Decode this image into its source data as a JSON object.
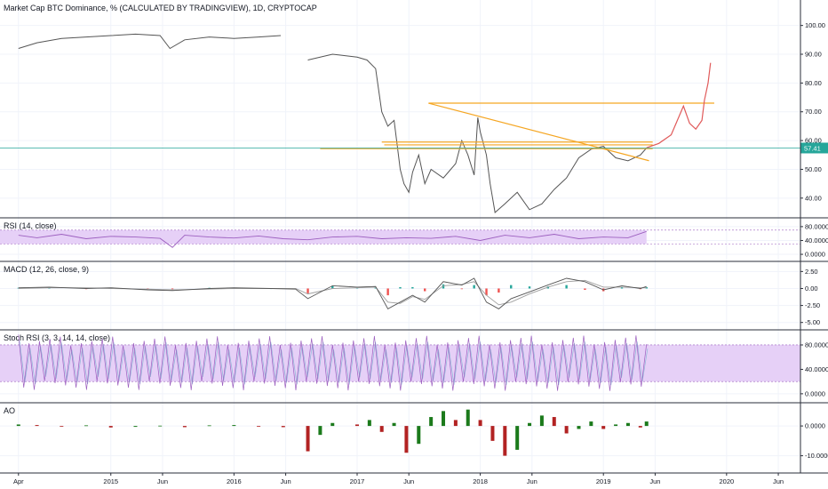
{
  "chart_data": [
    {
      "type": "line",
      "pane": "main",
      "title": "Market Cap BTC Dominance, % (CALCULATED BY TRADINGVIEW), 1D, CRYPTOCAP",
      "ylim": [
        35,
        107
      ],
      "yticks": [
        "100.00",
        "90.00",
        "80.00",
        "70.00",
        "60.00",
        "50.00",
        "40.00"
      ],
      "ytick_values": [
        100,
        90,
        80,
        70,
        60,
        50,
        40
      ],
      "last_value": 57.41,
      "last_value_label": "57.41",
      "series_color": "#555555",
      "x": [
        2014.25,
        2014.4,
        2014.6,
        2014.8,
        2015.0,
        2015.2,
        2015.4,
        2015.48,
        2015.6,
        2015.8,
        2016.0,
        2016.2,
        2016.38,
        2016.42,
        2016.6,
        2016.8,
        2017.0,
        2017.08,
        2017.15,
        2017.2,
        2017.25,
        2017.3,
        2017.35,
        2017.38,
        2017.42,
        2017.45,
        2017.5,
        2017.55,
        2017.6,
        2017.7,
        2017.8,
        2017.85,
        2017.9,
        2017.95,
        2017.98,
        2018.0,
        2018.05,
        2018.08,
        2018.12,
        2018.2,
        2018.3,
        2018.4,
        2018.5,
        2018.6,
        2018.7,
        2018.8,
        2018.9,
        2019.0,
        2019.1,
        2019.2,
        2019.3,
        2019.35
      ],
      "values": [
        92,
        94,
        95.5,
        96,
        96.5,
        97,
        96.5,
        92,
        95,
        96,
        95.5,
        96,
        96.5,
        null,
        88,
        90,
        89,
        88,
        85,
        70,
        65,
        67,
        50,
        45,
        42,
        49,
        55,
        45,
        50,
        47,
        52,
        60,
        55,
        48,
        68,
        63,
        55,
        45,
        35,
        38,
        42,
        36,
        38,
        43,
        47,
        54,
        57,
        58,
        54,
        53,
        55,
        57.4
      ],
      "trend_lines": [
        {
          "name": "descending-resistance",
          "color": "#f5a623",
          "from": [
            2017.58,
            73
          ],
          "to": [
            2019.37,
            53
          ]
        },
        {
          "name": "horizontal-73",
          "color": "#f5a623",
          "from": [
            2017.58,
            73
          ],
          "to": [
            2019.9,
            73
          ]
        },
        {
          "name": "horizontal-60",
          "color": "#f5a623",
          "from": [
            2017.2,
            59.5
          ],
          "to": [
            2019.4,
            59.5
          ]
        },
        {
          "name": "horizontal-58",
          "color": "#f5a623",
          "from": [
            2017.22,
            58.5
          ],
          "to": [
            2019.4,
            58.5
          ]
        },
        {
          "name": "horizontal-57",
          "color": "#f5a623",
          "from": [
            2016.7,
            57.2
          ],
          "to": [
            2019.4,
            57.2
          ]
        }
      ],
      "projection": {
        "color": "#e05a5a",
        "x": [
          2019.35,
          2019.45,
          2019.55,
          2019.65,
          2019.7,
          2019.75,
          2019.8,
          2019.82,
          2019.85,
          2019.87
        ],
        "values": [
          57.5,
          59,
          62,
          72,
          66,
          64,
          67,
          74,
          80,
          87
        ]
      },
      "last_value_line_color": "#26a69a"
    },
    {
      "type": "line",
      "pane": "rsi",
      "title": "RSI (14, close)",
      "ylim": [
        -5,
        90
      ],
      "yticks": [
        "80.0000",
        "40.0000",
        "0.0000"
      ],
      "ytick_values": [
        80,
        40,
        0
      ],
      "band": [
        30,
        70
      ],
      "band_color": "#e6d0f7",
      "series_color": "#9c5fbf",
      "x": [
        2014.25,
        2014.4,
        2014.6,
        2014.8,
        2015.0,
        2015.2,
        2015.4,
        2015.5,
        2015.6,
        2015.8,
        2016.0,
        2016.2,
        2016.4,
        2016.6,
        2016.8,
        2017.0,
        2017.2,
        2017.4,
        2017.6,
        2017.8,
        2018.0,
        2018.2,
        2018.4,
        2018.6,
        2018.8,
        2019.0,
        2019.2,
        2019.35
      ],
      "values": [
        55,
        48,
        58,
        45,
        52,
        50,
        46,
        20,
        55,
        50,
        47,
        53,
        45,
        42,
        50,
        52,
        45,
        48,
        46,
        52,
        40,
        55,
        48,
        58,
        45,
        50,
        48,
        66
      ]
    },
    {
      "type": "bar",
      "pane": "macd",
      "title": "MACD (12, 26, close, 9)",
      "ylim": [
        -5.3,
        3.2
      ],
      "yticks": [
        "2.50",
        "0.00",
        "-2.50",
        "-5.00"
      ],
      "ytick_values": [
        2.5,
        0,
        -2.5,
        -5
      ],
      "macd_color": "#555555",
      "signal_color": "#9e9e9e",
      "hist_pos_color": "#26a69a",
      "hist_neg_color": "#ef5350",
      "x": [
        2014.25,
        2014.5,
        2014.8,
        2015.0,
        2015.3,
        2015.5,
        2015.8,
        2016.0,
        2016.3,
        2016.5,
        2016.6,
        2016.8,
        2017.0,
        2017.15,
        2017.25,
        2017.35,
        2017.45,
        2017.55,
        2017.7,
        2017.85,
        2017.95,
        2018.05,
        2018.15,
        2018.25,
        2018.4,
        2018.55,
        2018.7,
        2018.85,
        2019.0,
        2019.15,
        2019.3,
        2019.35
      ],
      "macd": [
        0.1,
        0.2,
        0.0,
        0.1,
        -0.2,
        -0.3,
        0.0,
        0.1,
        0.0,
        -0.1,
        -1.5,
        0.4,
        0.2,
        0.3,
        -3.0,
        -2.0,
        -1.0,
        -2.0,
        1.0,
        0.5,
        1.5,
        -2.0,
        -3.0,
        -1.5,
        -0.5,
        0.5,
        1.5,
        1.0,
        -0.2,
        0.4,
        0.0,
        0.3
      ],
      "signal": [
        0.0,
        0.1,
        0.1,
        0.0,
        -0.1,
        -0.2,
        -0.1,
        0.0,
        0.0,
        0.0,
        -0.8,
        0.0,
        0.1,
        0.2,
        -2.0,
        -2.2,
        -1.2,
        -1.6,
        0.4,
        0.6,
        1.0,
        -1.0,
        -2.4,
        -2.0,
        -0.8,
        0.2,
        1.0,
        1.2,
        0.2,
        0.2,
        0.1,
        0.1
      ],
      "histogram": [
        0.1,
        0.1,
        -0.1,
        0.1,
        -0.1,
        -0.1,
        0.1,
        0.1,
        0.0,
        -0.1,
        -0.7,
        0.4,
        0.1,
        0.1,
        -1.0,
        0.2,
        0.2,
        -0.4,
        0.6,
        -0.1,
        0.5,
        -1.0,
        -0.6,
        0.5,
        0.3,
        0.3,
        0.5,
        -0.2,
        -0.4,
        0.2,
        -0.1,
        0.2
      ]
    },
    {
      "type": "line",
      "pane": "stoch",
      "title": "Stoch RSI (3, 3, 14, 14, close)",
      "ylim": [
        -6,
        96
      ],
      "yticks": [
        "80.0000",
        "40.0000",
        "0.0000"
      ],
      "ytick_values": [
        80,
        40,
        0
      ],
      "band": [
        20,
        80
      ],
      "band_color": "#e6d0f7",
      "k_color": "#9c5fbf",
      "d_color": "#8fb8d8",
      "x_start": 2014.25,
      "x_end": 2019.35,
      "oscillation_count": 60,
      "range": [
        3,
        97
      ]
    },
    {
      "type": "bar",
      "pane": "ao",
      "title": "AO",
      "ylim": [
        -14,
        6
      ],
      "yticks": [
        "0.0000",
        "-10.0000"
      ],
      "ytick_values": [
        0,
        -10
      ],
      "pos_color": "#26a69a",
      "neg_color": "#ef5350",
      "bar_color_up": "#1b7a1b",
      "bar_color_down": "#b22222",
      "x": [
        2014.25,
        2014.4,
        2014.6,
        2014.8,
        2015.0,
        2015.2,
        2015.4,
        2015.6,
        2015.8,
        2016.0,
        2016.2,
        2016.4,
        2016.6,
        2016.7,
        2016.8,
        2017.0,
        2017.1,
        2017.2,
        2017.3,
        2017.4,
        2017.5,
        2017.6,
        2017.7,
        2017.8,
        2017.9,
        2018.0,
        2018.1,
        2018.2,
        2018.3,
        2018.4,
        2018.5,
        2018.6,
        2018.7,
        2018.8,
        2018.9,
        2019.0,
        2019.1,
        2019.2,
        2019.3,
        2019.35
      ],
      "values": [
        0.5,
        0.3,
        -0.2,
        0.2,
        -0.5,
        -0.3,
        0.1,
        -0.4,
        0.2,
        0.3,
        -0.2,
        -0.4,
        -8.5,
        -3.0,
        1.0,
        0.5,
        2.0,
        -2.0,
        1.0,
        -9.0,
        -6.0,
        3.0,
        5.0,
        2.0,
        5.5,
        2.0,
        -5.0,
        -10.0,
        -8.0,
        1.0,
        3.5,
        3.0,
        -2.5,
        -1.0,
        1.5,
        -1.0,
        0.5,
        1.0,
        -0.5,
        1.5
      ]
    }
  ],
  "x_axis": {
    "tick_values": [
      2014.25,
      2015.0,
      2015.42,
      2016.0,
      2016.42,
      2017.0,
      2017.42,
      2018.0,
      2018.42,
      2019.0,
      2019.42,
      2020.0,
      2020.42
    ],
    "tick_labels": [
      "Apr",
      "2015",
      "Jun",
      "2016",
      "Jun",
      "2017",
      "Jun",
      "2018",
      "Jun",
      "2019",
      "Jun",
      "2020",
      "Jun"
    ],
    "range": [
      2014.1,
      2020.6
    ]
  },
  "colors": {
    "grid": "#f0f3fa",
    "pane_border": "#2a2e39",
    "axis_text": "#131722"
  }
}
